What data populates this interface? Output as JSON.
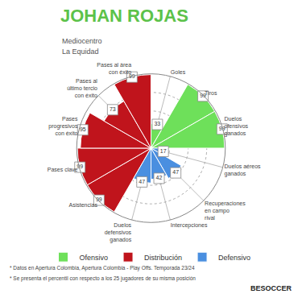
{
  "chart_data": {
    "type": "barpolar",
    "title": "JOHAN ROJAS",
    "subtitle": [
      "Mediocentro",
      "La Equidad"
    ],
    "categories": [
      "Goles",
      "Tiros",
      "Duelos ofensivos ganados",
      "Duelos aéreos ganados",
      "Recuperaciones en campo rival",
      "Intercepciones",
      "Duelos defensivos ganados",
      "Asistencias",
      "Pases clave",
      "Pases progresivos con éxito",
      "Pases al último tercio con éxito",
      "Pases al área con éxito"
    ],
    "series": [
      {
        "name": "Ofensivo",
        "color": "#6ee05a",
        "values": [
          33,
          99,
          99,
          null,
          null,
          null,
          null,
          null,
          null,
          null,
          null,
          null
        ]
      },
      {
        "name": "Distribución",
        "color": "#c0141c",
        "values": [
          null,
          null,
          null,
          null,
          null,
          null,
          null,
          99,
          99,
          95,
          73,
          99
        ]
      },
      {
        "name": "Defensivo",
        "color": "#4a8fe0",
        "values": [
          null,
          null,
          null,
          17,
          47,
          42,
          47,
          null,
          null,
          null,
          null,
          null
        ]
      }
    ],
    "ylim": [
      0,
      100
    ],
    "yticks": [
      25,
      50,
      75,
      100
    ],
    "grid": true,
    "data_labels": true,
    "tick_labels": "x",
    "legend": "bottom",
    "annotations": [
      "* Datos en Apertura Colombia, Apertura Colombia - Play Offs. Temporada 23/24",
      "* Se presenta el percentil con respecto a los 25 jugadores de su misma posición",
      "BESOCCER"
    ]
  }
}
